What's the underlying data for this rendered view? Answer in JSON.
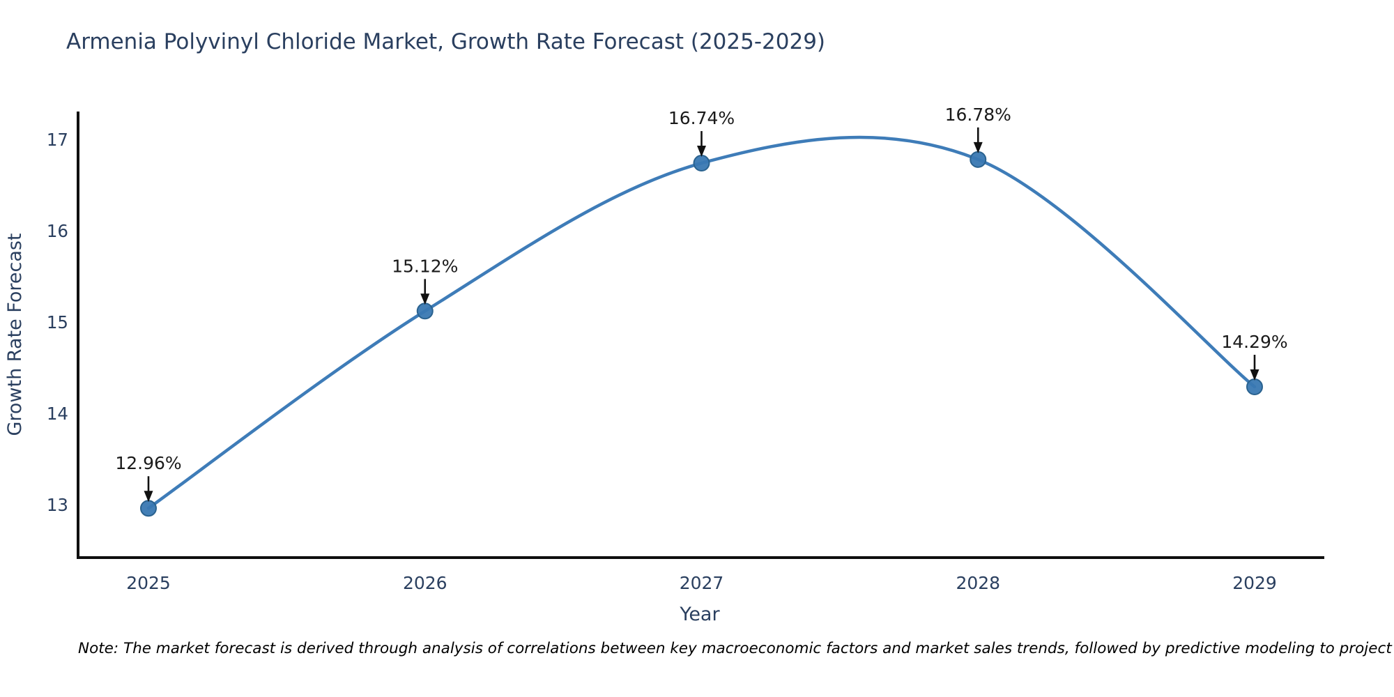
{
  "title": "Armenia Polyvinyl Chloride Market, Growth Rate Forecast (2025-2029)",
  "footnote": "Note: The market forecast is derived through analysis of correlations between key macroeconomic factors and market sales trends, followed by predictive modeling to project future sales",
  "chart_data": {
    "type": "line",
    "line_shape": "spline",
    "title": "Armenia Polyvinyl Chloride Market, Growth Rate Forecast (2025-2029)",
    "xlabel": "Year",
    "ylabel": "Growth Rate Forecast",
    "x": [
      2025,
      2026,
      2027,
      2028,
      2029
    ],
    "values": [
      12.96,
      15.12,
      16.74,
      16.78,
      14.29
    ],
    "point_labels": [
      "12.96%",
      "15.12%",
      "16.74%",
      "16.78%",
      "14.29%"
    ],
    "xticks": [
      "2025",
      "2026",
      "2027",
      "2028",
      "2029"
    ],
    "yticks": [
      13,
      14,
      15,
      16,
      17
    ],
    "xlim": [
      2024.74,
      2029.25
    ],
    "ylim": [
      12.42,
      17.31
    ],
    "grid": false,
    "legend_position": "none",
    "markers": true,
    "annotations_have_arrows": true
  },
  "colors": {
    "background": "#ffffff",
    "line": "#3e7cb8",
    "marker_fill": "#3978b2",
    "marker_edge": "#2a628f",
    "axis_line": "#0f0f0f",
    "title_text": "#2a3f5f",
    "axis_text": "#2a3f5f",
    "annotation_text": "#1a1a1a",
    "arrow": "#111111",
    "note_text": "#000000"
  }
}
